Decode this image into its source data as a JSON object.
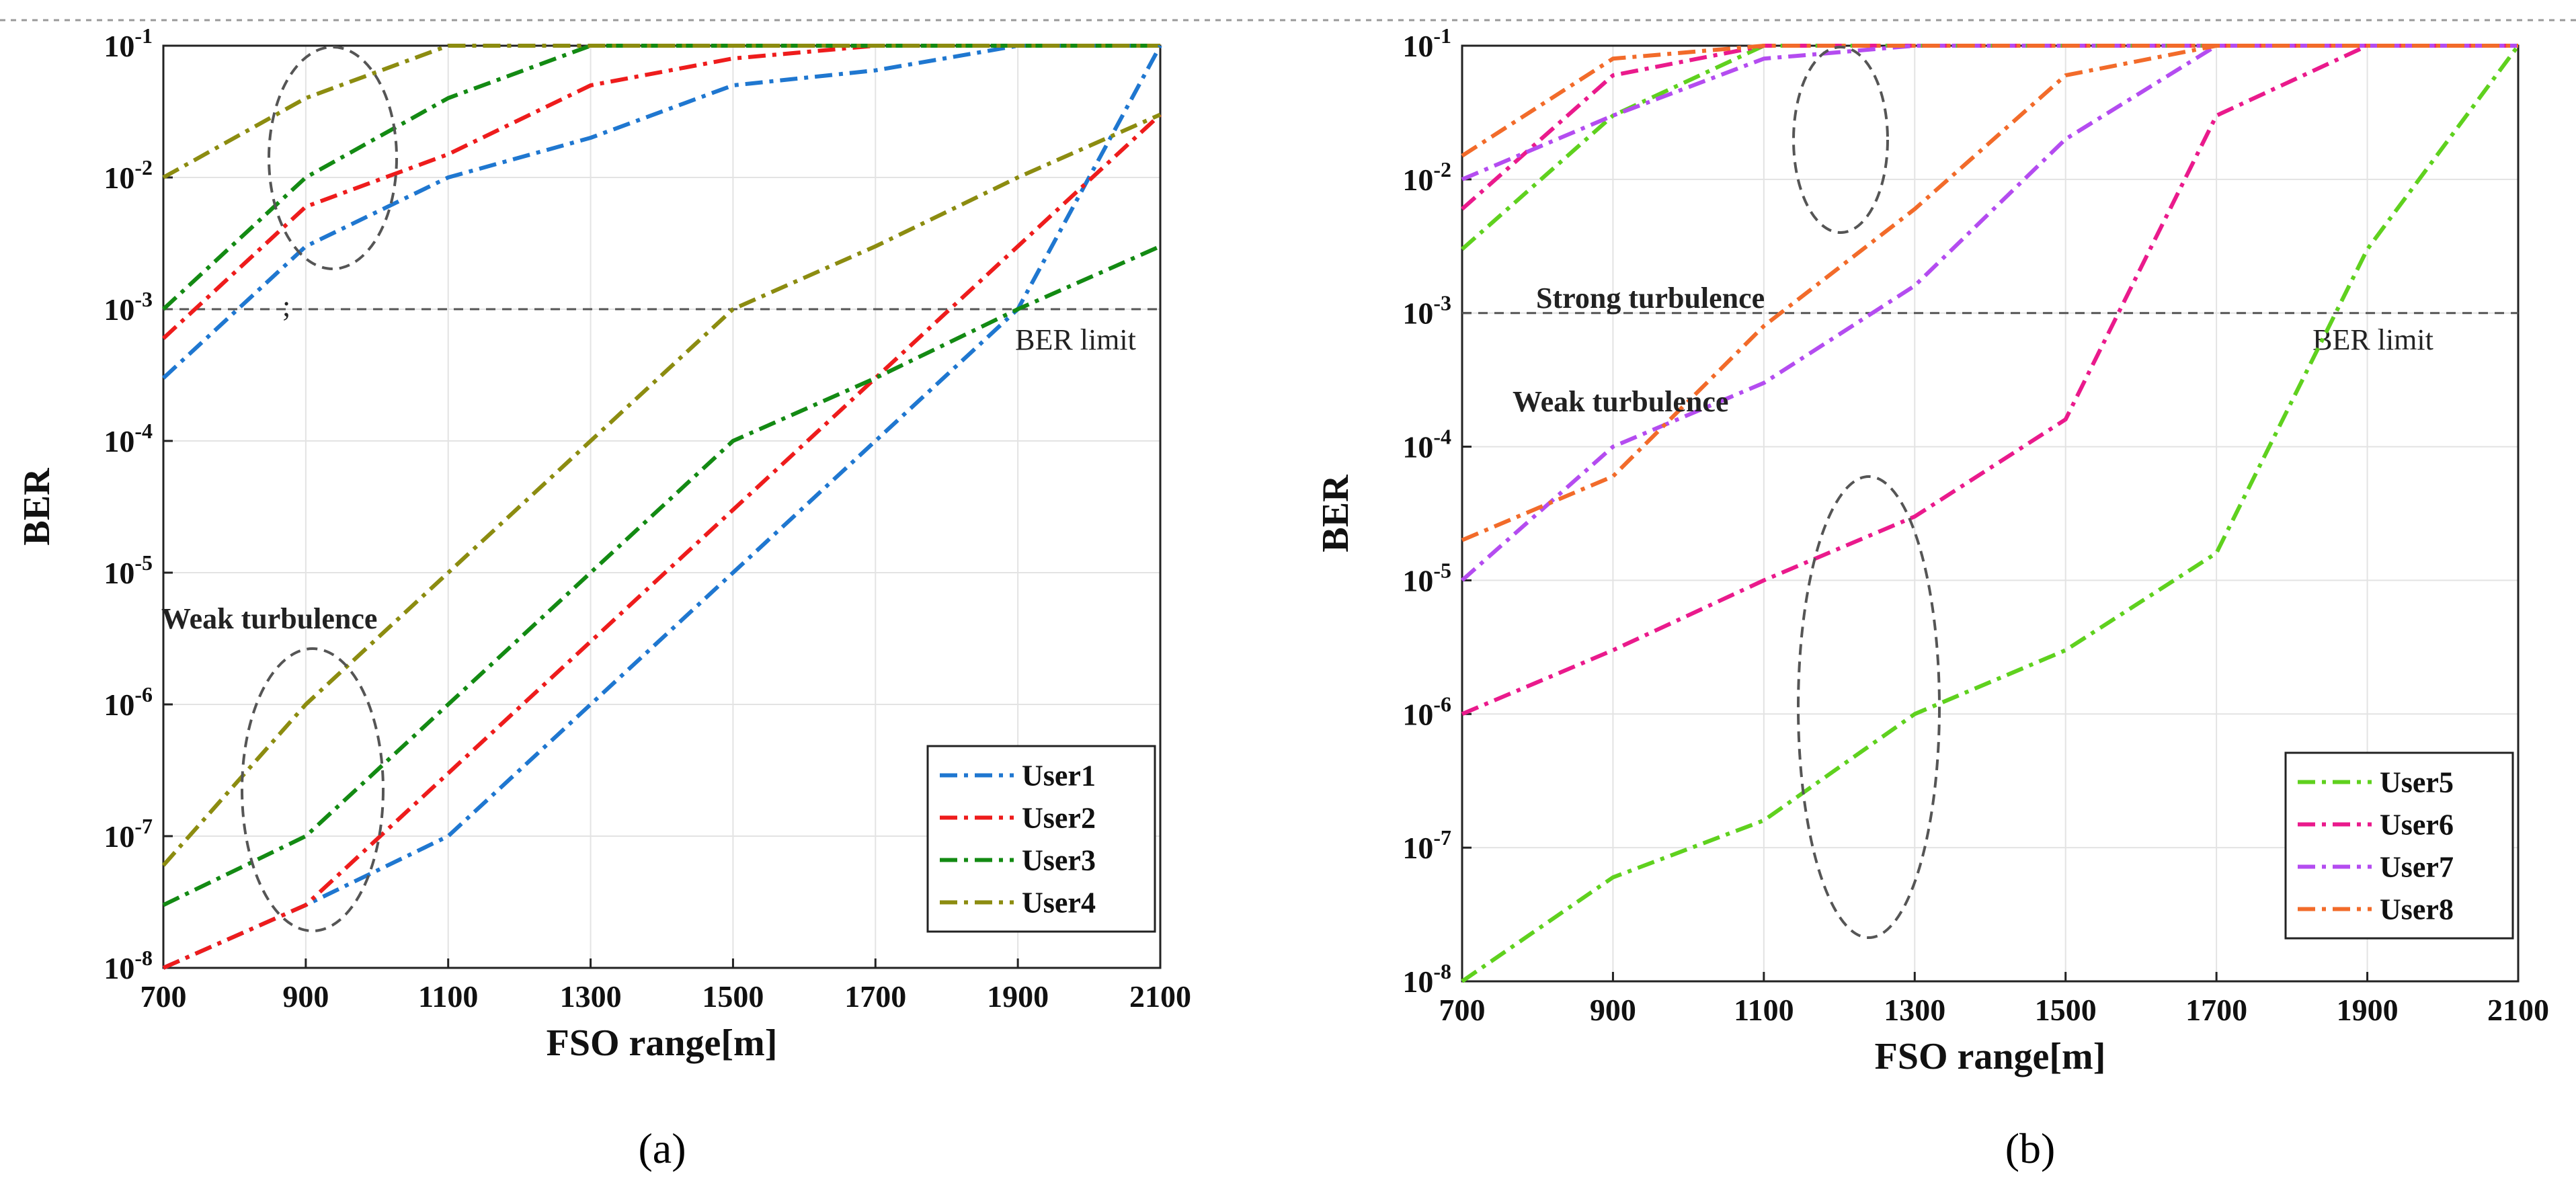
{
  "chart_data": [
    {
      "type": "line",
      "yscale": "log",
      "panel_label": "(a)",
      "xlabel": "FSO range[m]",
      "ylabel": "BER",
      "xlim": [
        700,
        2100
      ],
      "ylim": [
        1e-08,
        0.1
      ],
      "xticks": [
        700,
        900,
        1100,
        1300,
        1500,
        1700,
        1900,
        2100
      ],
      "yticks": [
        {
          "base": "10",
          "exp": "-8"
        },
        {
          "base": "10",
          "exp": "-7"
        },
        {
          "base": "10",
          "exp": "-6"
        },
        {
          "base": "10",
          "exp": "-5"
        },
        {
          "base": "10",
          "exp": "-4"
        },
        {
          "base": "10",
          "exp": "-3"
        },
        {
          "base": "10",
          "exp": "-2"
        },
        {
          "base": "10",
          "exp": "-1"
        }
      ],
      "grid": true,
      "ber_limit": {
        "value": 0.001,
        "label": "BER limit"
      },
      "annotations": [
        {
          "text": "Weak turbulence"
        },
        {
          "text": ";"
        }
      ],
      "legend_position": "bottom-right",
      "x": [
        700,
        900,
        1100,
        1300,
        1500,
        1700,
        1900,
        2100
      ],
      "series": [
        {
          "name": "User1",
          "group": "strong",
          "color": "#1f77d0",
          "values": [
            0.0003,
            0.003,
            0.01,
            0.02,
            0.05,
            0.065,
            0.1,
            0.1
          ]
        },
        {
          "name": "User2",
          "group": "strong",
          "color": "#ee1c1c",
          "values": [
            0.0006,
            0.006,
            0.015,
            0.05,
            0.08,
            0.1,
            0.1,
            0.1
          ]
        },
        {
          "name": "User3",
          "group": "strong",
          "color": "#138a13",
          "values": [
            0.001,
            0.01,
            0.04,
            0.1,
            0.1,
            0.1,
            0.1,
            0.1
          ]
        },
        {
          "name": "User4",
          "group": "strong",
          "color": "#8c8c10",
          "values": [
            0.01,
            0.04,
            0.1,
            0.1,
            0.1,
            0.1,
            0.1,
            0.1
          ]
        },
        {
          "name": "User1",
          "group": "weak",
          "color": "#1f77d0",
          "values": [
            1e-08,
            3e-08,
            1e-07,
            1e-06,
            1e-05,
            0.0001,
            0.001,
            0.1
          ]
        },
        {
          "name": "User2",
          "group": "weak",
          "color": "#ee1c1c",
          "values": [
            1e-08,
            3e-08,
            3e-07,
            3e-06,
            3e-05,
            0.0003,
            0.003,
            0.03
          ]
        },
        {
          "name": "User3",
          "group": "weak",
          "color": "#138a13",
          "values": [
            3e-08,
            1e-07,
            1e-06,
            1e-05,
            0.0001,
            0.0003,
            0.001,
            0.003
          ]
        },
        {
          "name": "User4",
          "group": "weak",
          "color": "#8c8c10",
          "values": [
            6e-08,
            1e-06,
            1e-05,
            0.0001,
            0.001,
            0.003,
            0.01,
            0.03
          ]
        }
      ],
      "legend": [
        {
          "name": "User1",
          "color": "#1f77d0"
        },
        {
          "name": "User2",
          "color": "#ee1c1c"
        },
        {
          "name": "User3",
          "color": "#138a13"
        },
        {
          "name": "User4",
          "color": "#8c8c10"
        }
      ]
    },
    {
      "type": "line",
      "yscale": "log",
      "panel_label": "(b)",
      "xlabel": "FSO range[m]",
      "ylabel": "BER",
      "xlim": [
        700,
        2100
      ],
      "ylim": [
        1e-08,
        0.1
      ],
      "xticks": [
        700,
        900,
        1100,
        1300,
        1500,
        1700,
        1900,
        2100
      ],
      "yticks": [
        {
          "base": "10",
          "exp": "-8"
        },
        {
          "base": "10",
          "exp": "-7"
        },
        {
          "base": "10",
          "exp": "-6"
        },
        {
          "base": "10",
          "exp": "-5"
        },
        {
          "base": "10",
          "exp": "-4"
        },
        {
          "base": "10",
          "exp": "-3"
        },
        {
          "base": "10",
          "exp": "-2"
        },
        {
          "base": "10",
          "exp": "-1"
        }
      ],
      "grid": true,
      "ber_limit": {
        "value": 0.001,
        "label": "BER limit"
      },
      "annotations": [
        {
          "text": "Strong turbulence"
        },
        {
          "text": "Weak turbulence"
        }
      ],
      "legend_position": "bottom-right",
      "x": [
        700,
        900,
        1100,
        1300,
        1500,
        1700,
        1900,
        2100
      ],
      "series": [
        {
          "name": "User5",
          "group": "strong",
          "color": "#5fd11e",
          "values": [
            0.003,
            0.03,
            0.1,
            0.1,
            0.1,
            0.1,
            0.1,
            0.1
          ]
        },
        {
          "name": "User6",
          "group": "strong",
          "color": "#ea1a8c",
          "values": [
            0.006,
            0.06,
            0.1,
            0.1,
            0.1,
            0.1,
            0.1,
            0.1
          ]
        },
        {
          "name": "User7",
          "group": "strong",
          "color": "#b44cf0",
          "values": [
            0.01,
            0.03,
            0.08,
            0.1,
            0.1,
            0.1,
            0.1,
            0.1
          ]
        },
        {
          "name": "User8",
          "group": "strong",
          "color": "#f26b2a",
          "values": [
            0.015,
            0.08,
            0.1,
            0.1,
            0.1,
            0.1,
            0.1,
            0.1
          ]
        },
        {
          "name": "User5",
          "group": "weak",
          "color": "#5fd11e",
          "values": [
            1e-08,
            6e-08,
            1.6e-07,
            1e-06,
            3e-06,
            1.6e-05,
            0.003,
            0.1
          ]
        },
        {
          "name": "User6",
          "group": "weak",
          "color": "#ea1a8c",
          "values": [
            1e-06,
            3e-06,
            1e-05,
            3e-05,
            0.00016,
            0.03,
            0.1,
            0.1
          ]
        },
        {
          "name": "User7",
          "group": "weak",
          "color": "#b44cf0",
          "values": [
            1e-05,
            0.0001,
            0.0003,
            0.0016,
            0.02,
            0.1,
            0.1,
            0.1
          ]
        },
        {
          "name": "User8",
          "group": "weak",
          "color": "#f26b2a",
          "values": [
            2e-05,
            6e-05,
            0.0008,
            0.006,
            0.06,
            0.1,
            0.1,
            0.1
          ]
        }
      ],
      "legend": [
        {
          "name": "User5",
          "color": "#5fd11e"
        },
        {
          "name": "User6",
          "color": "#ea1a8c"
        },
        {
          "name": "User7",
          "color": "#b44cf0"
        },
        {
          "name": "User8",
          "color": "#f26b2a"
        }
      ]
    }
  ]
}
